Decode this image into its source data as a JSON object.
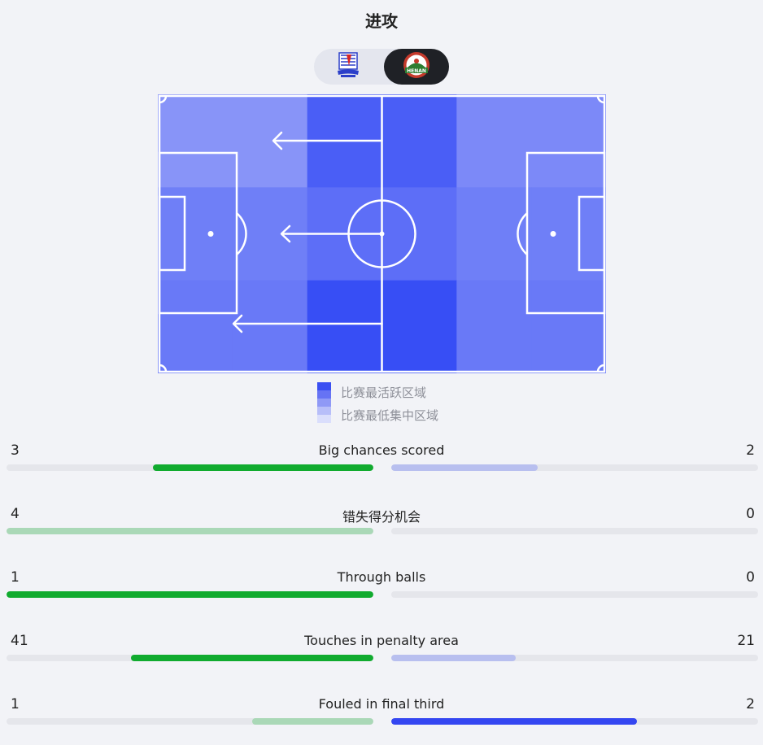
{
  "title": "进攻",
  "teams": {
    "home": {
      "logo_icon": "shanghai-shenhua-crest-icon",
      "selected": false
    },
    "away": {
      "logo_icon": "henan-crest-icon",
      "logo_text": "HENAN",
      "selected": true
    }
  },
  "heatmap": {
    "columns": 6,
    "rows": 3,
    "intensity": [
      [
        0.35,
        0.35,
        0.85,
        0.85,
        0.45,
        0.45
      ],
      [
        0.55,
        0.55,
        0.7,
        0.7,
        0.55,
        0.55
      ],
      [
        0.6,
        0.6,
        1.0,
        1.0,
        0.6,
        0.6
      ]
    ],
    "attack_arrows": [
      "left",
      "left",
      "left"
    ]
  },
  "legend": {
    "high_label": "比赛最活跃区域",
    "low_label": "比赛最低集中区域",
    "scale_colors": [
      "#3a4ff2",
      "#6673f4",
      "#8f99f6",
      "#b7bef9",
      "#dadefc"
    ]
  },
  "colors": {
    "home_strong": "#11ab2f",
    "home_light": "#aad8b7",
    "away_strong": "#3446f1",
    "away_light": "#b8bfef",
    "track": "#e5e6eb"
  },
  "stats": [
    {
      "label": "Big chances scored",
      "home": "3",
      "away": "2",
      "home_ratio": 0.6,
      "away_ratio": 0.4,
      "home_style": "strong",
      "away_style": "light"
    },
    {
      "label": "错失得分机会",
      "home": "4",
      "away": "0",
      "home_ratio": 1.0,
      "away_ratio": 0.0,
      "home_style": "light",
      "away_style": "light"
    },
    {
      "label": "Through balls",
      "home": "1",
      "away": "0",
      "home_ratio": 1.0,
      "away_ratio": 0.0,
      "home_style": "strong",
      "away_style": "light"
    },
    {
      "label": "Touches in penalty area",
      "home": "41",
      "away": "21",
      "home_ratio": 0.66,
      "away_ratio": 0.34,
      "home_style": "strong",
      "away_style": "light"
    },
    {
      "label": "Fouled in final third",
      "home": "1",
      "away": "2",
      "home_ratio": 0.33,
      "away_ratio": 0.67,
      "home_style": "light",
      "away_style": "strong"
    }
  ]
}
